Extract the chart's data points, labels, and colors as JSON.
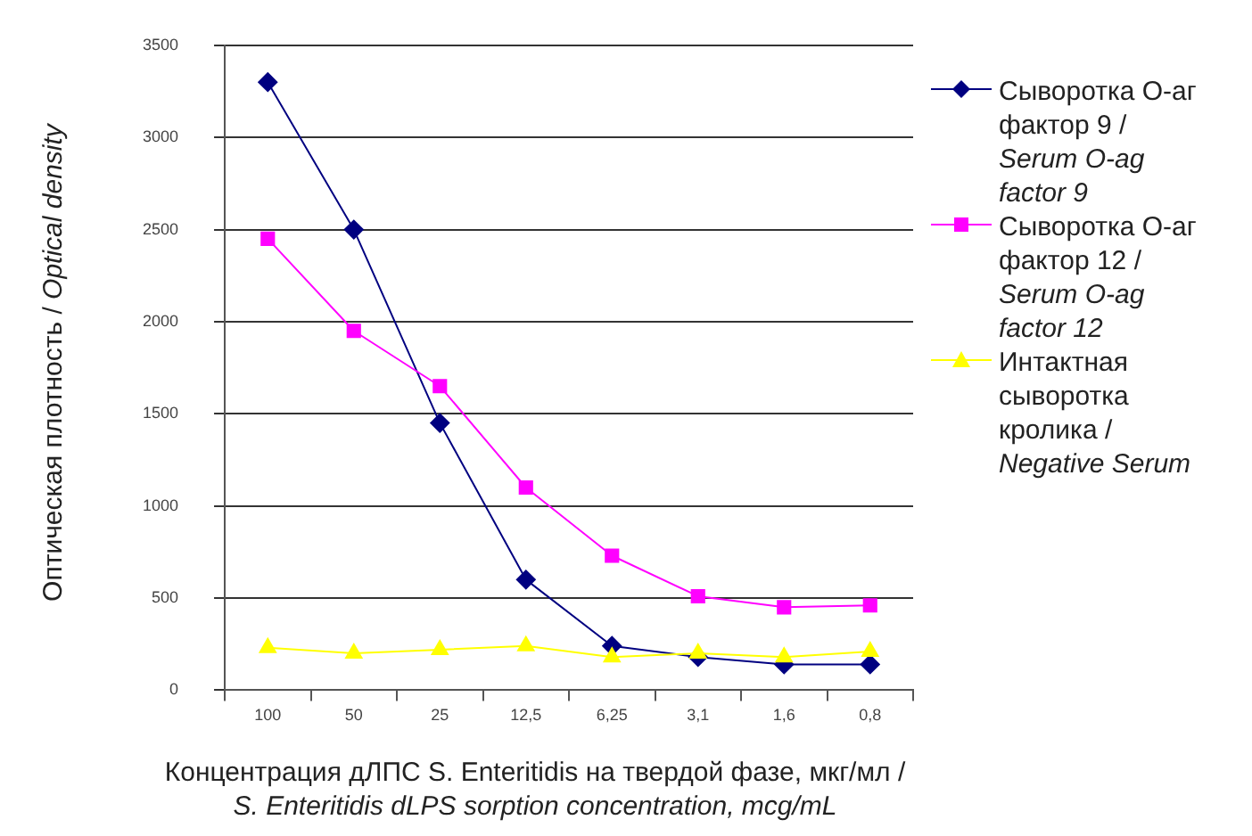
{
  "chart_data": {
    "type": "line",
    "xlabel": "Концентрация дЛПС S. Enteritidis на твердой фазе, мкг/мл / S. Enteritidis dLPS sorption concentration, mcg/mL",
    "ylabel": "Оптическая плотность / Optical density",
    "categories": [
      "100",
      "50",
      "25",
      "12,5",
      "6,25",
      "3,1",
      "1,6",
      "0,8"
    ],
    "series": [
      {
        "name": "Сыворотка О-аг фактор 9 / Serum O-ag factor 9",
        "color": "#000080",
        "marker": "diamond",
        "values": [
          3300,
          2500,
          1450,
          600,
          240,
          180,
          140,
          140
        ]
      },
      {
        "name": "Сыворотка О-аг фактор 12 / Serum O-ag factor 12",
        "color": "#ff00ff",
        "marker": "square",
        "values": [
          2450,
          1950,
          1650,
          1100,
          730,
          510,
          450,
          460
        ]
      },
      {
        "name": "Интактная сыворотка кролика / Negative Serum",
        "color": "#ffff00",
        "marker": "triangle",
        "values": [
          230,
          200,
          220,
          240,
          180,
          200,
          180,
          210
        ]
      }
    ],
    "ylim": [
      0,
      3500
    ],
    "yticks": [
      0,
      500,
      1000,
      1500,
      2000,
      2500,
      3000,
      3500
    ],
    "grid": "y",
    "legend": "right"
  }
}
